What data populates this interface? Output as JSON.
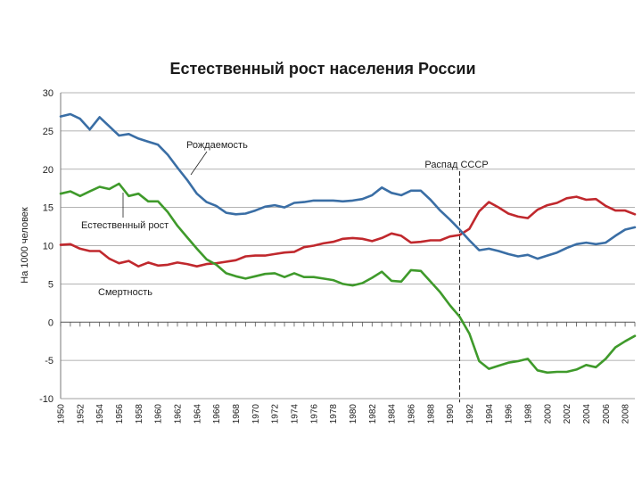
{
  "chart_data": {
    "type": "line",
    "title": "Естественный рост населения России",
    "xlabel": "",
    "ylabel": "На 1000 человек",
    "ylim": [
      -10,
      30
    ],
    "yticks": [
      30,
      25,
      20,
      15,
      10,
      5,
      0,
      -5,
      -10
    ],
    "xlim": [
      1950,
      2009
    ],
    "xticks": [
      1950,
      1952,
      1954,
      1956,
      1958,
      1960,
      1962,
      1964,
      1966,
      1968,
      1970,
      1972,
      1974,
      1976,
      1978,
      1980,
      1982,
      1984,
      1986,
      1988,
      1990,
      1992,
      1994,
      1996,
      1998,
      2000,
      2002,
      2004,
      2006,
      2008
    ],
    "grid": true,
    "annotations": {
      "birth_label": "Рождаемость",
      "growth_label": "Естественный рост",
      "death_label": "Смертность",
      "ussr_label": "Распад СССР",
      "ussr_year": 1991
    },
    "series": [
      {
        "name": "Рождаемость",
        "color": "#3a6ea5",
        "x": [
          1950,
          1951,
          1952,
          1953,
          1954,
          1955,
          1956,
          1957,
          1958,
          1959,
          1960,
          1961,
          1962,
          1963,
          1964,
          1965,
          1966,
          1967,
          1968,
          1969,
          1970,
          1971,
          1972,
          1973,
          1974,
          1975,
          1976,
          1977,
          1978,
          1979,
          1980,
          1981,
          1982,
          1983,
          1984,
          1985,
          1986,
          1987,
          1988,
          1989,
          1990,
          1991,
          1992,
          1993,
          1994,
          1995,
          1996,
          1997,
          1998,
          1999,
          2000,
          2001,
          2002,
          2003,
          2004,
          2005,
          2006,
          2007,
          2008,
          2009
        ],
        "values": [
          26.9,
          27.2,
          26.6,
          25.2,
          26.8,
          25.6,
          24.4,
          24.6,
          24.0,
          23.6,
          23.2,
          21.9,
          20.2,
          18.6,
          16.8,
          15.7,
          15.2,
          14.3,
          14.1,
          14.2,
          14.6,
          15.1,
          15.3,
          15.0,
          15.6,
          15.7,
          15.9,
          15.9,
          15.9,
          15.8,
          15.9,
          16.1,
          16.6,
          17.6,
          16.9,
          16.6,
          17.2,
          17.2,
          16.0,
          14.6,
          13.4,
          12.1,
          10.7,
          9.4,
          9.6,
          9.3,
          8.9,
          8.6,
          8.8,
          8.3,
          8.7,
          9.1,
          9.7,
          10.2,
          10.4,
          10.2,
          10.4,
          11.3,
          12.1,
          12.4
        ]
      },
      {
        "name": "Смертность",
        "color": "#c0282d",
        "x": [
          1950,
          1951,
          1952,
          1953,
          1954,
          1955,
          1956,
          1957,
          1958,
          1959,
          1960,
          1961,
          1962,
          1963,
          1964,
          1965,
          1966,
          1967,
          1968,
          1969,
          1970,
          1971,
          1972,
          1973,
          1974,
          1975,
          1976,
          1977,
          1978,
          1979,
          1980,
          1981,
          1982,
          1983,
          1984,
          1985,
          1986,
          1987,
          1988,
          1989,
          1990,
          1991,
          1992,
          1993,
          1994,
          1995,
          1996,
          1997,
          1998,
          1999,
          2000,
          2001,
          2002,
          2003,
          2004,
          2005,
          2006,
          2007,
          2008,
          2009
        ],
        "values": [
          10.1,
          10.2,
          9.6,
          9.3,
          9.3,
          8.3,
          7.7,
          8.0,
          7.3,
          7.8,
          7.4,
          7.5,
          7.8,
          7.6,
          7.3,
          7.6,
          7.7,
          7.9,
          8.1,
          8.6,
          8.7,
          8.7,
          8.9,
          9.1,
          9.2,
          9.8,
          10.0,
          10.3,
          10.5,
          10.9,
          11.0,
          10.9,
          10.6,
          11.0,
          11.6,
          11.3,
          10.4,
          10.5,
          10.7,
          10.7,
          11.2,
          11.4,
          12.2,
          14.5,
          15.7,
          15.0,
          14.2,
          13.8,
          13.6,
          14.7,
          15.3,
          15.6,
          16.2,
          16.4,
          16.0,
          16.1,
          15.2,
          14.6,
          14.6,
          14.1
        ]
      },
      {
        "name": "Естественный рост",
        "color": "#3f9a2b",
        "x": [
          1950,
          1951,
          1952,
          1953,
          1954,
          1955,
          1956,
          1957,
          1958,
          1959,
          1960,
          1961,
          1962,
          1963,
          1964,
          1965,
          1966,
          1967,
          1968,
          1969,
          1970,
          1971,
          1972,
          1973,
          1974,
          1975,
          1976,
          1977,
          1978,
          1979,
          1980,
          1981,
          1982,
          1983,
          1984,
          1985,
          1986,
          1987,
          1988,
          1989,
          1990,
          1991,
          1992,
          1993,
          1994,
          1995,
          1996,
          1997,
          1998,
          1999,
          2000,
          2001,
          2002,
          2003,
          2004,
          2005,
          2006,
          2007,
          2008,
          2009
        ],
        "values": [
          16.8,
          17.1,
          16.5,
          17.1,
          17.7,
          17.4,
          18.1,
          16.5,
          16.8,
          15.8,
          15.8,
          14.4,
          12.6,
          11.1,
          9.6,
          8.2,
          7.5,
          6.4,
          6.0,
          5.7,
          6.0,
          6.3,
          6.4,
          5.9,
          6.4,
          5.9,
          5.9,
          5.7,
          5.5,
          5.0,
          4.8,
          5.1,
          5.8,
          6.6,
          5.4,
          5.3,
          6.8,
          6.7,
          5.3,
          3.9,
          2.2,
          0.7,
          -1.5,
          -5.1,
          -6.1,
          -5.7,
          -5.3,
          -5.1,
          -4.8,
          -6.3,
          -6.6,
          -6.5,
          -6.5,
          -6.2,
          -5.6,
          -5.9,
          -4.8,
          -3.3,
          -2.5,
          -1.8
        ]
      }
    ]
  }
}
